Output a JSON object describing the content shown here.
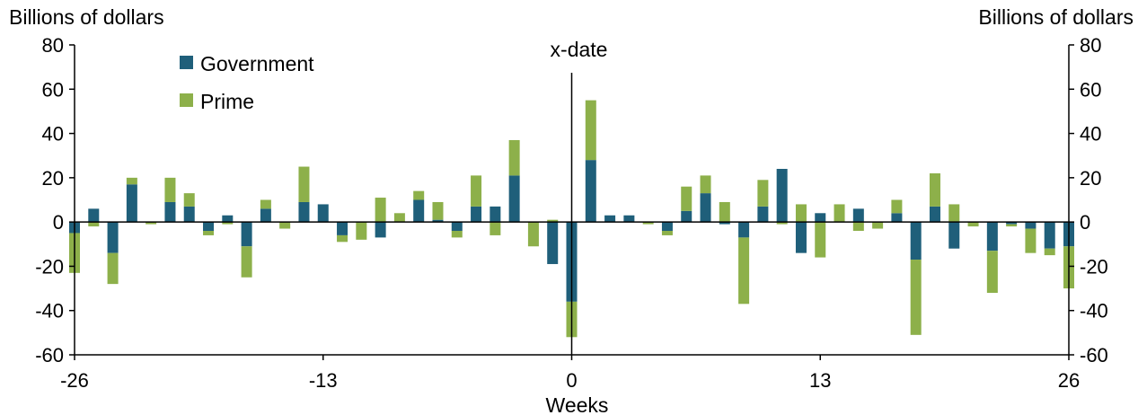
{
  "chart_data": {
    "type": "bar",
    "stacked": true,
    "title": "",
    "xlabel": "Weeks",
    "ylabel_left": "Billions of dollars",
    "ylabel_right": "Billions of dollars",
    "ylim": [
      -60,
      80
    ],
    "yticks": [
      -60,
      -40,
      -20,
      0,
      20,
      40,
      60,
      80
    ],
    "xlim": [
      -26,
      26
    ],
    "xticks": [
      -26,
      -13,
      0,
      13,
      26
    ],
    "annotation": {
      "label": "x-date",
      "x": 0
    },
    "legend": {
      "placement": "top-left"
    },
    "x": [
      -26,
      -25,
      -24,
      -23,
      -22,
      -21,
      -20,
      -19,
      -18,
      -17,
      -16,
      -15,
      -14,
      -13,
      -12,
      -11,
      -10,
      -9,
      -8,
      -7,
      -6,
      -5,
      -4,
      -3,
      -2,
      -1,
      0,
      1,
      2,
      3,
      4,
      5,
      6,
      7,
      8,
      9,
      10,
      11,
      12,
      13,
      14,
      15,
      16,
      17,
      18,
      19,
      20,
      21,
      22,
      23,
      24,
      25,
      26
    ],
    "series": [
      {
        "name": "Government",
        "color": "#1f5f7a",
        "values": [
          -5,
          6,
          -14,
          17,
          0,
          9,
          7,
          -4,
          3,
          -11,
          6,
          0,
          9,
          8,
          -6,
          0,
          -7,
          0,
          10,
          1,
          -4,
          7,
          7,
          21,
          0,
          -19,
          -36,
          28,
          3,
          3,
          0,
          -4,
          5,
          13,
          -1,
          -7,
          7,
          24,
          -14,
          4,
          0,
          6,
          0,
          4,
          -17,
          7,
          -12,
          0,
          -13,
          -1,
          -3,
          -12,
          -11
        ]
      },
      {
        "name": "Prime",
        "color": "#8db04a",
        "values": [
          -18,
          -2,
          -14,
          3,
          -1,
          11,
          6,
          -2,
          -1,
          -14,
          4,
          -3,
          16,
          0,
          -3,
          -8,
          11,
          4,
          4,
          8,
          -3,
          14,
          -6,
          16,
          -11,
          1,
          -16,
          27,
          0,
          0,
          -1,
          -2,
          11,
          8,
          9,
          -30,
          12,
          -1,
          8,
          -16,
          8,
          -4,
          -3,
          6,
          -34,
          15,
          8,
          -2,
          -19,
          -1,
          -11,
          -3,
          -19
        ]
      }
    ]
  }
}
